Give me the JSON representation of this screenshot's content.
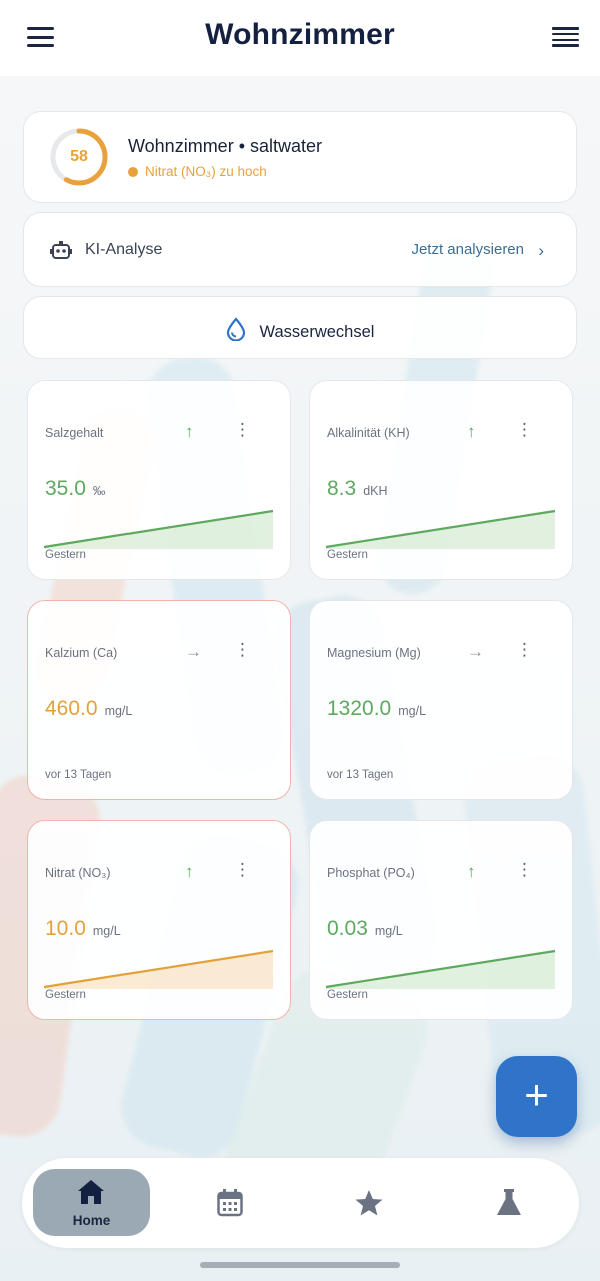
{
  "header": {
    "title": "Wohnzimmer",
    "menu_icon": "hamburger-menu-icon",
    "list_icon": "list-view-icon"
  },
  "overview": {
    "score": "58",
    "score_fraction": 0.58,
    "name": "Wohnzimmer • saltwater",
    "alert": "Nitrat (NO₃) zu hoch",
    "accent": "#e9a23b"
  },
  "ai": {
    "label": "KI-Analyse",
    "action": "Jetzt analysieren",
    "icon": "robot-icon"
  },
  "water_change": {
    "label": "Wasserwechsel",
    "icon": "water-drop-icon"
  },
  "parameters": [
    {
      "name": "Salzgehalt",
      "value": "35.0",
      "unit": "‰",
      "date": "Gestern",
      "trend": "↑",
      "trend_color": "green",
      "value_color": "green",
      "warn": false,
      "spark": "green"
    },
    {
      "name": "Alkalinität (KH)",
      "value": "8.3",
      "unit": "dKH",
      "date": "Gestern",
      "trend": "↑",
      "trend_color": "green",
      "value_color": "green",
      "warn": false,
      "spark": "green"
    },
    {
      "name": "Kalzium (Ca)",
      "value": "460.0",
      "unit": "mg/L",
      "date": "vor 13 Tagen",
      "trend": "→",
      "trend_color": "grey",
      "value_color": "orange",
      "warn": true,
      "spark": null
    },
    {
      "name": "Magnesium (Mg)",
      "value": "1320.0",
      "unit": "mg/L",
      "date": "vor 13 Tagen",
      "trend": "→",
      "trend_color": "grey",
      "value_color": "green",
      "warn": false,
      "spark": null
    },
    {
      "name": "Nitrat (NO₃)",
      "value": "10.0",
      "unit": "mg/L",
      "date": "Gestern",
      "trend": "↑",
      "trend_color": "green",
      "value_color": "orange",
      "warn": true,
      "spark": "orange"
    },
    {
      "name": "Phosphat (PO₄)",
      "value": "0.03",
      "unit": "mg/L",
      "date": "Gestern",
      "trend": "↑",
      "trend_color": "green",
      "value_color": "green",
      "warn": false,
      "spark": "green"
    }
  ],
  "fab": {
    "label": "+",
    "icon": "add-icon"
  },
  "nav": {
    "home_label": "Home",
    "icons": [
      "home-icon",
      "calendar-icon",
      "star-icon",
      "flask-icon"
    ]
  },
  "colors": {
    "green": "#5ea85f",
    "orange": "#e4a13a",
    "primary": "#2f74c8",
    "navy": "#13203f"
  }
}
